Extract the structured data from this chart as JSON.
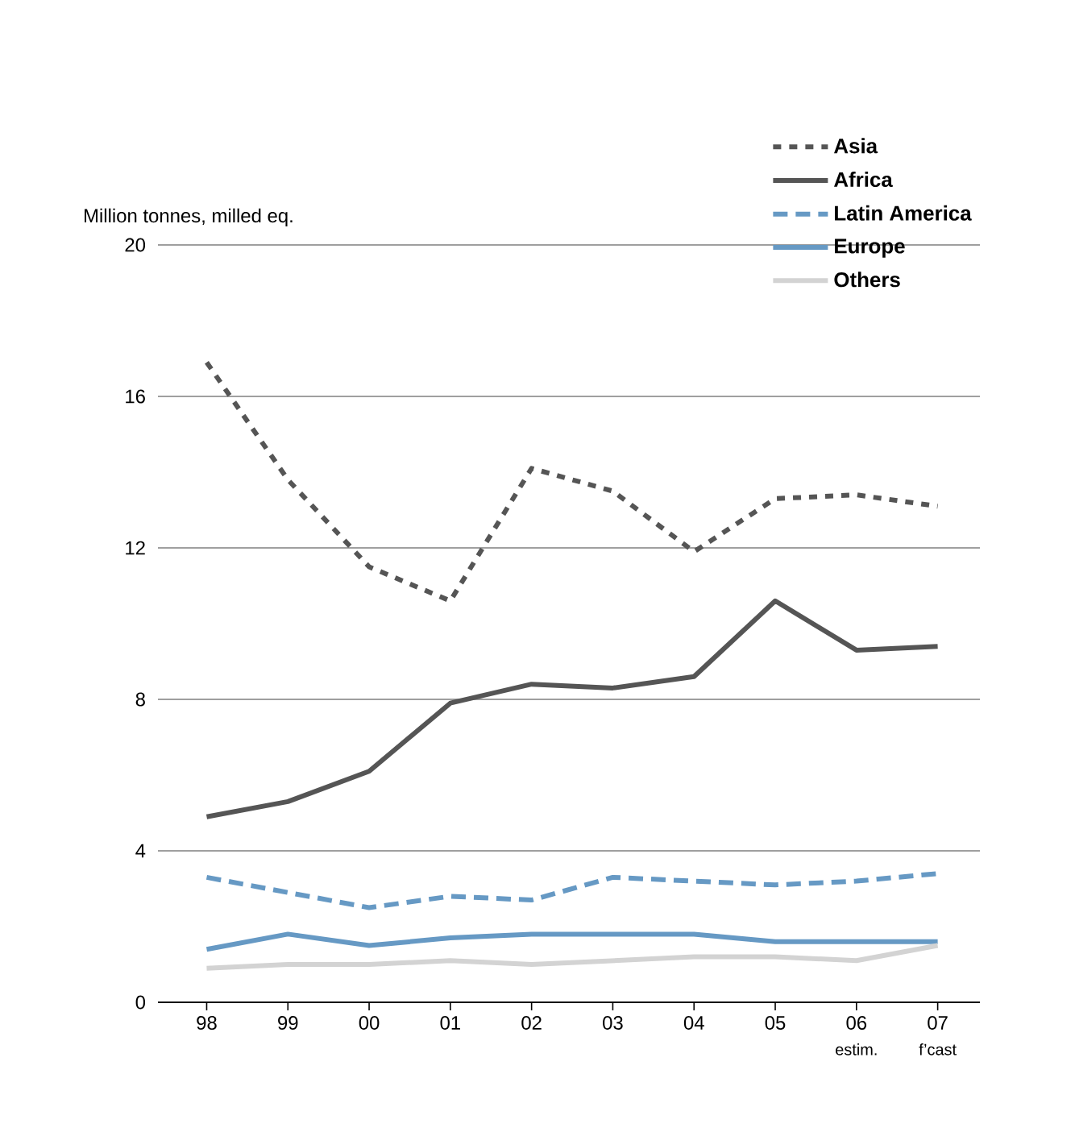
{
  "chart_data": {
    "type": "line",
    "ylabel": "Million tonnes, milled eq.",
    "categories": [
      "98",
      "99",
      "00",
      "01",
      "02",
      "03",
      "04",
      "05",
      "06",
      "07"
    ],
    "series": [
      {
        "name": "Asia",
        "color": "#555555",
        "line_style": "dotted",
        "values": [
          16.9,
          13.8,
          11.5,
          10.6,
          14.1,
          13.5,
          11.9,
          13.3,
          13.4,
          13.1
        ]
      },
      {
        "name": "Africa",
        "color": "#555555",
        "line_style": "solid",
        "values": [
          4.9,
          5.3,
          6.1,
          7.9,
          8.4,
          8.3,
          8.6,
          10.6,
          9.3,
          9.4
        ]
      },
      {
        "name": "Latin America",
        "color": "#6699c4",
        "line_style": "dashed",
        "values": [
          3.3,
          2.9,
          2.5,
          2.8,
          2.7,
          3.3,
          3.2,
          3.1,
          3.2,
          3.4
        ]
      },
      {
        "name": "Europe",
        "color": "#6699c4",
        "line_style": "solid",
        "values": [
          1.4,
          1.8,
          1.5,
          1.7,
          1.8,
          1.8,
          1.8,
          1.6,
          1.6,
          1.6
        ]
      },
      {
        "name": "Others",
        "color": "#d3d3d3",
        "line_style": "solid",
        "values": [
          0.9,
          1.0,
          1.0,
          1.1,
          1.0,
          1.1,
          1.2,
          1.2,
          1.1,
          1.5
        ]
      }
    ],
    "ylim": [
      0,
      20
    ],
    "yticks": [
      0,
      4,
      8,
      12,
      16,
      20
    ],
    "grid": "y",
    "legend": "top right",
    "marker": "none",
    "annotations": [
      "estim.",
      "f’cast"
    ]
  }
}
